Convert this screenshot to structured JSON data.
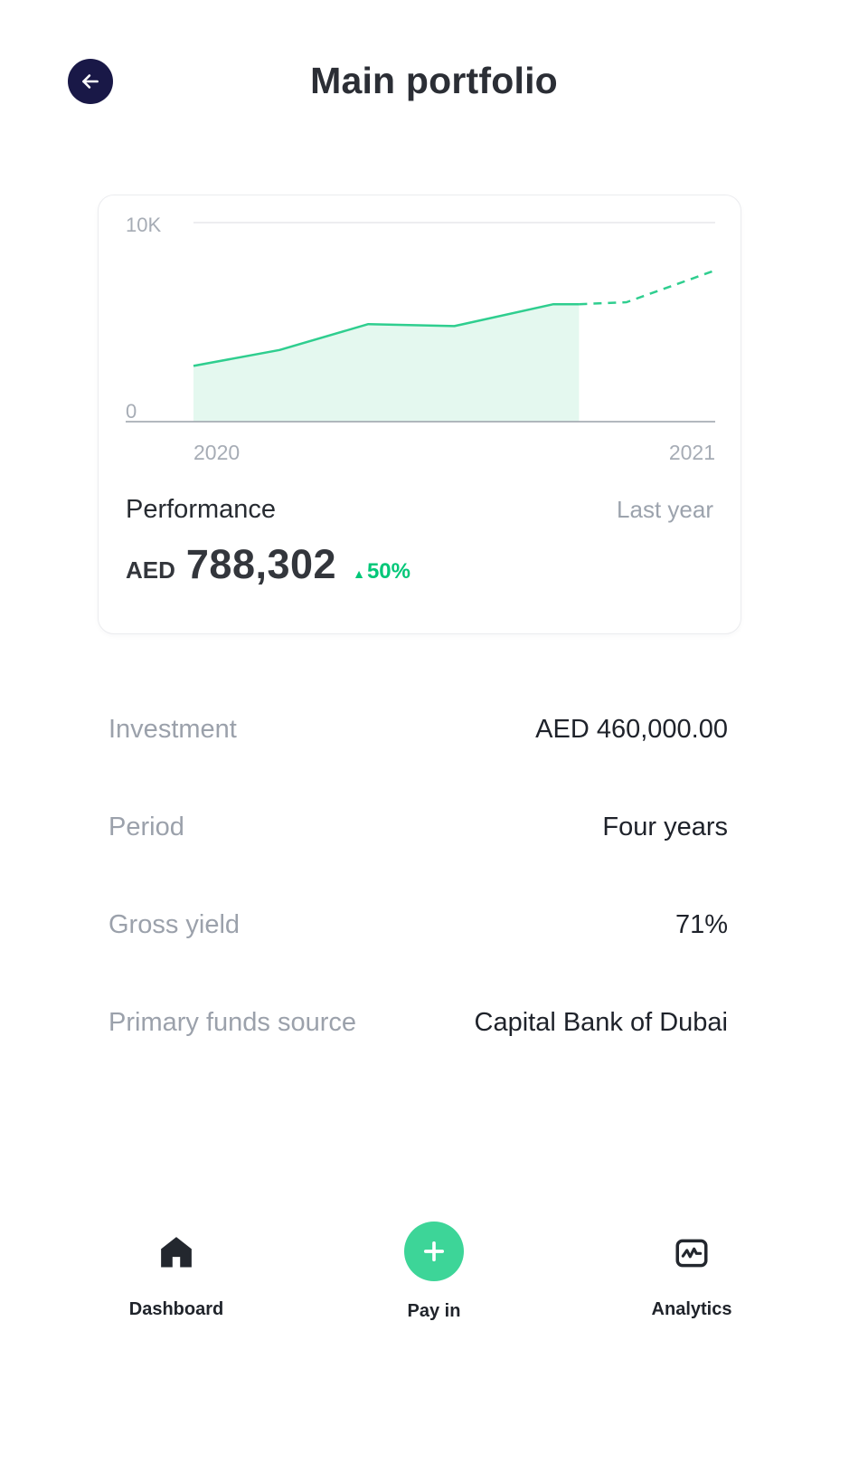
{
  "header": {
    "title": "Main portfolio"
  },
  "card": {
    "performance_label": "Performance",
    "range_label": "Last year",
    "currency": "AED",
    "amount": "788,302",
    "change_arrow": "▲",
    "change_value": "50%",
    "change_direction": "up"
  },
  "chart_data": {
    "type": "area",
    "title": "Performance",
    "xticks": [
      "2020",
      "2021"
    ],
    "yticks": [
      "10K",
      "0"
    ],
    "ylim": [
      0,
      10000
    ],
    "grid": "top-gridline-only",
    "legend": "none",
    "series": [
      {
        "name": "actual",
        "style": "solid",
        "fill": true,
        "x": [
          0,
          0.165,
          0.335,
          0.5,
          0.69,
          0.739
        ],
        "values": [
          2800,
          3600,
          4900,
          4800,
          5900,
          5900
        ]
      },
      {
        "name": "projected",
        "style": "dashed",
        "fill": false,
        "x": [
          0.739,
          0.83,
          1.0
        ],
        "values": [
          5900,
          6000,
          7600
        ]
      }
    ]
  },
  "details": [
    {
      "label": "Investment",
      "value": "AED 460,000.00"
    },
    {
      "label": "Period",
      "value": "Four years"
    },
    {
      "label": "Gross yield",
      "value": "71%"
    },
    {
      "label": "Primary funds source",
      "value": "Capital Bank of Dubai"
    }
  ],
  "bottom_nav": [
    {
      "label": "Dashboard",
      "icon": "home-icon"
    },
    {
      "label": "Pay in",
      "icon": "plus-icon"
    },
    {
      "label": "Analytics",
      "icon": "analytics-icon"
    }
  ],
  "colors": {
    "accent_green": "#00c778",
    "chart_line_green": "#2fce8f",
    "chart_fill_mint": "#e4f8ef",
    "pay_in_green": "#3dd598",
    "back_button_navy": "#191847",
    "muted_gray": "#9ca3ad",
    "text_dark": "#272b31"
  }
}
